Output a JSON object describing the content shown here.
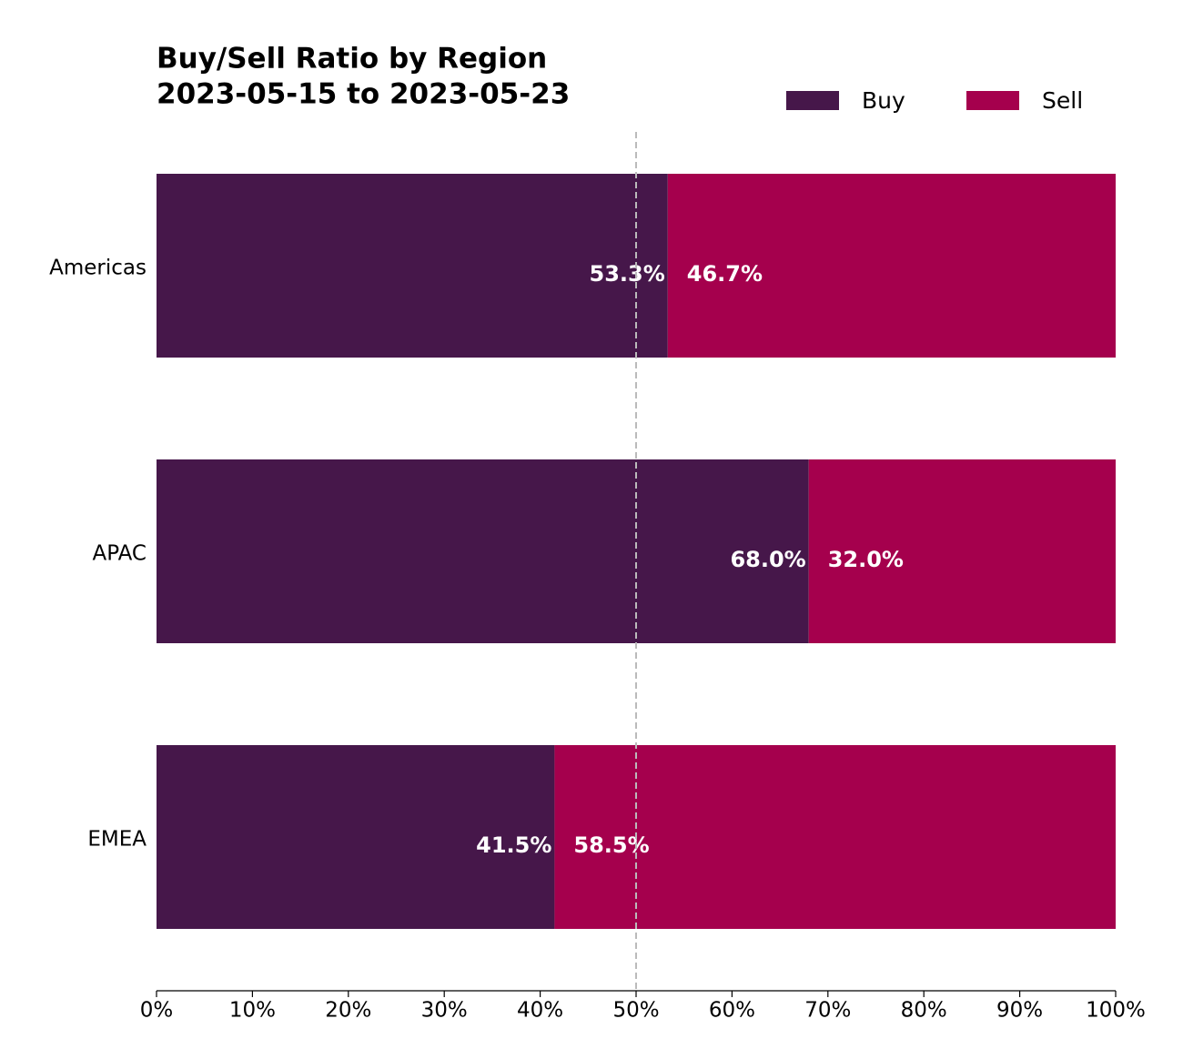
{
  "chart_data": {
    "type": "stacked_barh",
    "title": "Buy/Sell Ratio by Region",
    "subtitle": "2023-05-15 to 2023-05-23",
    "categories": [
      "Americas",
      "APAC",
      "EMEA"
    ],
    "series": [
      {
        "name": "Buy",
        "color": "#46174a",
        "values": [
          53.3,
          68.0,
          41.5
        ],
        "value_labels": [
          "53.3%",
          "68.0%",
          "41.5%"
        ]
      },
      {
        "name": "Sell",
        "color": "#a5004d",
        "values": [
          46.7,
          32.0,
          58.5
        ],
        "value_labels": [
          "46.7%",
          "32.0%",
          "58.5%"
        ]
      }
    ],
    "xlim": [
      0,
      100
    ],
    "xticks": [
      {
        "value": 0,
        "label": "0%"
      },
      {
        "value": 10,
        "label": "10%"
      },
      {
        "value": 20,
        "label": "20%"
      },
      {
        "value": 30,
        "label": "30%"
      },
      {
        "value": 40,
        "label": "40%"
      },
      {
        "value": 50,
        "label": "50%"
      },
      {
        "value": 60,
        "label": "60%"
      },
      {
        "value": 70,
        "label": "70%"
      },
      {
        "value": 80,
        "label": "80%"
      },
      {
        "value": 90,
        "label": "90%"
      },
      {
        "value": 100,
        "label": "100%"
      }
    ],
    "reference_line": 50,
    "legend": "top-right"
  }
}
